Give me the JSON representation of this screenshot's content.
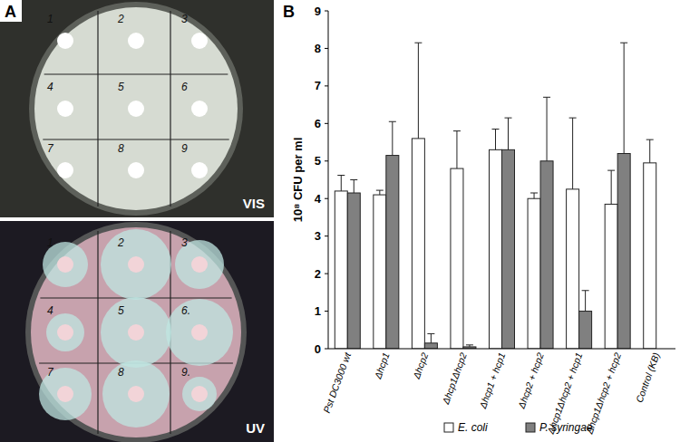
{
  "panel_a": {
    "label": "A",
    "plates": [
      {
        "label": "VIS",
        "numbers": [
          "1",
          "2",
          "3",
          "4",
          "5",
          "6",
          "7",
          "8",
          "9"
        ]
      },
      {
        "label": "UV",
        "numbers": [
          "1",
          "2",
          "3",
          "4",
          "5",
          "6.",
          "7",
          "8",
          "9."
        ]
      }
    ]
  },
  "panel_b": {
    "label": "B"
  },
  "chart_data": {
    "type": "bar",
    "y_label": "10⁸ CFU per ml",
    "categories": [
      "Pst DC3000 wt",
      "Δhcp1",
      "Δhcp2",
      "Δhcp1Δhcp2",
      "Δhcp1 + hcp1",
      "Δhcp2 + hcp2",
      "Δhcp1Δhcp2 + hcp1",
      "Δhcp1Δhcp2 + hcp2",
      "Control (KB)"
    ],
    "series": [
      {
        "name": "E. coli",
        "color": "#ffffff",
        "values": [
          4.2,
          4.1,
          5.6,
          4.8,
          5.3,
          4.0,
          4.25,
          3.85,
          4.95
        ],
        "errors": [
          0.42,
          0.12,
          2.55,
          1.0,
          0.55,
          0.15,
          1.9,
          0.9,
          0.62
        ]
      },
      {
        "name": "P. syringae",
        "color": "#808080",
        "values": [
          4.15,
          5.15,
          0.15,
          0.05,
          5.3,
          5.0,
          1.0,
          5.2,
          null
        ],
        "errors": [
          0.35,
          0.9,
          0.25,
          0.05,
          0.85,
          1.7,
          0.55,
          2.95,
          null
        ]
      }
    ],
    "ylim": [
      0,
      9
    ],
    "yticks": [
      0,
      1,
      2,
      3,
      4,
      5,
      6,
      7,
      8,
      9
    ],
    "grid": false,
    "legend": "bottom"
  }
}
